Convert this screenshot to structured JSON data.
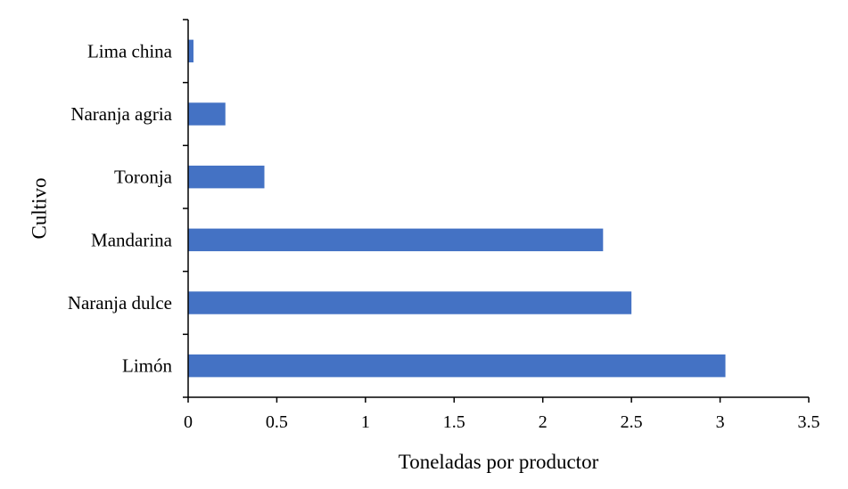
{
  "chart_data": {
    "type": "bar",
    "orientation": "horizontal",
    "categories": [
      "Limón",
      "Naranja dulce",
      "Mandarina",
      "Toronja",
      "Naranja agria",
      "Lima china"
    ],
    "values": [
      3.03,
      2.5,
      2.34,
      0.43,
      0.21,
      0.03
    ],
    "xlabel": "Toneladas por productor",
    "ylabel": "Cultivo",
    "xlim": [
      0,
      3.5
    ],
    "xticks": [
      "0",
      "0.5",
      "1",
      "1.5",
      "2",
      "2.5",
      "3",
      "3.5"
    ],
    "xtick_values": [
      0,
      0.5,
      1,
      1.5,
      2,
      2.5,
      3,
      3.5
    ],
    "grid": false,
    "bar_color": "#4472C4"
  }
}
